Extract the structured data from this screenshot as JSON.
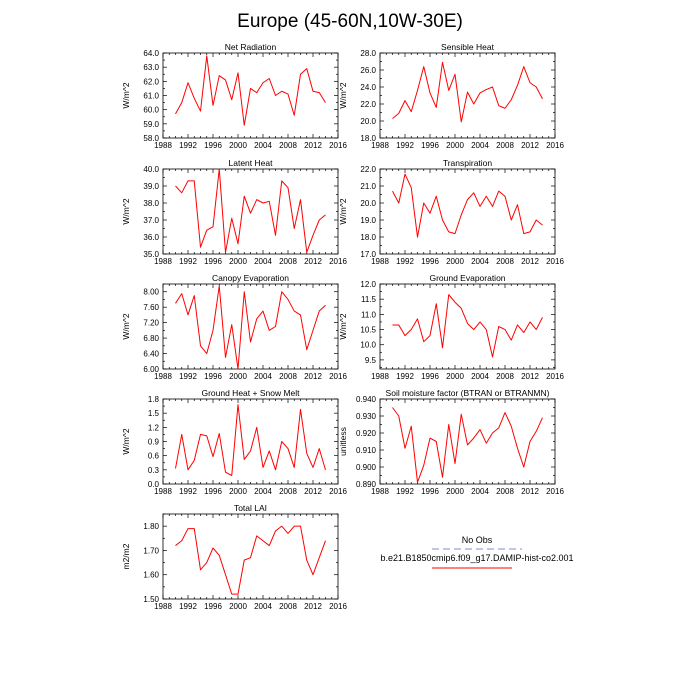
{
  "title": "Europe (45-60N,10W-30E)",
  "colors": {
    "model": "#ff0000",
    "obs": "#aab4dd"
  },
  "legend": {
    "entries": [
      {
        "label": "No Obs",
        "color": "#aab4dd",
        "dashed": true
      },
      {
        "label": "b.e21.B1850cmip6.f09_g17.DAMIP-hist-co2.001",
        "color": "#ff0000",
        "dashed": false
      }
    ]
  },
  "chart_data": [
    {
      "type": "line",
      "title": "Net Radiation",
      "ylabel": "W/m^2",
      "xlim": [
        1988,
        2016
      ],
      "ylim": [
        58.0,
        64.0
      ],
      "xticks": [
        1988,
        1992,
        1996,
        2000,
        2004,
        2008,
        2012,
        2016
      ],
      "yticks": [
        58.0,
        59.0,
        60.0,
        61.0,
        62.0,
        63.0,
        64.0
      ],
      "yformat": 1,
      "x": [
        1990,
        1991,
        1992,
        1993,
        1994,
        1995,
        1996,
        1997,
        1998,
        1999,
        2000,
        2001,
        2002,
        2003,
        2004,
        2005,
        2006,
        2007,
        2008,
        2009,
        2010,
        2011,
        2012,
        2013,
        2014
      ],
      "series": [
        {
          "name": "b.e21.B1850cmip6.f09_g17.DAMIP-hist-co2.001",
          "values": [
            59.7,
            60.5,
            61.9,
            60.8,
            59.9,
            63.8,
            60.3,
            62.4,
            62.1,
            60.7,
            62.6,
            58.9,
            61.5,
            61.2,
            61.9,
            62.2,
            61.0,
            61.3,
            61.1,
            59.6,
            62.5,
            62.9,
            61.3,
            61.2,
            60.5
          ]
        }
      ]
    },
    {
      "type": "line",
      "title": "Sensible Heat",
      "ylabel": "W/m^2",
      "xlim": [
        1988,
        2016
      ],
      "ylim": [
        18.0,
        28.0
      ],
      "xticks": [
        1988,
        1992,
        1996,
        2000,
        2004,
        2008,
        2012,
        2016
      ],
      "yticks": [
        18.0,
        20.0,
        22.0,
        24.0,
        26.0,
        28.0
      ],
      "yformat": 1,
      "x": [
        1990,
        1991,
        1992,
        1993,
        1994,
        1995,
        1996,
        1997,
        1998,
        1999,
        2000,
        2001,
        2002,
        2003,
        2004,
        2005,
        2006,
        2007,
        2008,
        2009,
        2010,
        2011,
        2012,
        2013,
        2014
      ],
      "series": [
        {
          "name": "b.e21.B1850cmip6.f09_g17.DAMIP-hist-co2.001",
          "values": [
            20.3,
            20.9,
            22.4,
            21.1,
            23.6,
            26.4,
            23.3,
            21.6,
            26.9,
            23.6,
            25.5,
            19.9,
            23.4,
            22.0,
            23.3,
            23.7,
            24.0,
            21.8,
            21.5,
            22.5,
            24.2,
            26.4,
            24.5,
            24.0,
            22.6
          ]
        }
      ]
    },
    {
      "type": "line",
      "title": "Latent Heat",
      "ylabel": "W/m^2",
      "xlim": [
        1988,
        2016
      ],
      "ylim": [
        35.0,
        40.0
      ],
      "xticks": [
        1988,
        1992,
        1996,
        2000,
        2004,
        2008,
        2012,
        2016
      ],
      "yticks": [
        35.0,
        36.0,
        37.0,
        38.0,
        39.0,
        40.0
      ],
      "yformat": 1,
      "x": [
        1990,
        1991,
        1992,
        1993,
        1994,
        1995,
        1996,
        1997,
        1998,
        1999,
        2000,
        2001,
        2002,
        2003,
        2004,
        2005,
        2006,
        2007,
        2008,
        2009,
        2010,
        2011,
        2012,
        2013,
        2014
      ],
      "series": [
        {
          "name": "b.e21.B1850cmip6.f09_g17.DAMIP-hist-co2.001",
          "values": [
            39.0,
            38.6,
            39.3,
            39.3,
            35.4,
            36.4,
            36.6,
            40.0,
            35.1,
            37.1,
            35.6,
            38.4,
            37.4,
            38.2,
            38.0,
            38.1,
            36.1,
            39.3,
            38.9,
            36.5,
            38.2,
            35.1,
            36.1,
            37.0,
            37.3
          ]
        }
      ]
    },
    {
      "type": "line",
      "title": "Transpiration",
      "ylabel": "W/m^2",
      "xlim": [
        1988,
        2016
      ],
      "ylim": [
        17.0,
        22.0
      ],
      "xticks": [
        1988,
        1992,
        1996,
        2000,
        2004,
        2008,
        2012,
        2016
      ],
      "yticks": [
        17.0,
        18.0,
        19.0,
        20.0,
        21.0,
        22.0
      ],
      "yformat": 1,
      "x": [
        1990,
        1991,
        1992,
        1993,
        1994,
        1995,
        1996,
        1997,
        1998,
        1999,
        2000,
        2001,
        2002,
        2003,
        2004,
        2005,
        2006,
        2007,
        2008,
        2009,
        2010,
        2011,
        2012,
        2013,
        2014
      ],
      "series": [
        {
          "name": "b.e21.B1850cmip6.f09_g17.DAMIP-hist-co2.001",
          "values": [
            20.7,
            20.0,
            21.7,
            20.9,
            18.0,
            20.0,
            19.4,
            20.4,
            19.0,
            18.3,
            18.2,
            19.3,
            20.2,
            20.6,
            19.8,
            20.4,
            19.8,
            20.7,
            20.4,
            19.0,
            19.9,
            18.2,
            18.3,
            19.0,
            18.7
          ]
        }
      ]
    },
    {
      "type": "line",
      "title": "Canopy Evaporation",
      "ylabel": "W/m^2",
      "xlim": [
        1988,
        2016
      ],
      "ylim": [
        6.0,
        8.2
      ],
      "xticks": [
        1988,
        1992,
        1996,
        2000,
        2004,
        2008,
        2012,
        2016
      ],
      "yticks": [
        6.0,
        6.4,
        6.8,
        7.2,
        7.6,
        8.0
      ],
      "yformat": 2,
      "x": [
        1990,
        1991,
        1992,
        1993,
        1994,
        1995,
        1996,
        1997,
        1998,
        1999,
        2000,
        2001,
        2002,
        2003,
        2004,
        2005,
        2006,
        2007,
        2008,
        2009,
        2010,
        2011,
        2012,
        2013,
        2014
      ],
      "series": [
        {
          "name": "b.e21.B1850cmip6.f09_g17.DAMIP-hist-co2.001",
          "values": [
            7.7,
            7.95,
            7.4,
            7.9,
            6.6,
            6.4,
            7.0,
            8.15,
            6.3,
            7.15,
            6.0,
            8.0,
            6.7,
            7.3,
            7.5,
            7.0,
            7.1,
            8.0,
            7.8,
            7.5,
            7.4,
            6.5,
            7.0,
            7.5,
            7.65
          ]
        }
      ]
    },
    {
      "type": "line",
      "title": "Ground Evaporation",
      "ylabel": "W/m^2",
      "xlim": [
        1988,
        2016
      ],
      "ylim": [
        9.2,
        12.0
      ],
      "xticks": [
        1988,
        1992,
        1996,
        2000,
        2004,
        2008,
        2012,
        2016
      ],
      "yticks": [
        9.5,
        10.0,
        10.5,
        11.0,
        11.5,
        12.0
      ],
      "yformat": 1,
      "x": [
        1990,
        1991,
        1992,
        1993,
        1994,
        1995,
        1996,
        1997,
        1998,
        1999,
        2000,
        2001,
        2002,
        2003,
        2004,
        2005,
        2006,
        2007,
        2008,
        2009,
        2010,
        2011,
        2012,
        2013,
        2014
      ],
      "series": [
        {
          "name": "b.e21.B1850cmip6.f09_g17.DAMIP-hist-co2.001",
          "values": [
            10.65,
            10.65,
            10.3,
            10.5,
            10.85,
            10.1,
            10.3,
            11.35,
            9.9,
            11.65,
            11.4,
            11.2,
            10.7,
            10.5,
            10.75,
            10.5,
            9.6,
            10.6,
            10.5,
            10.15,
            10.65,
            10.4,
            10.75,
            10.5,
            10.9
          ]
        }
      ]
    },
    {
      "type": "line",
      "title": "Ground Heat + Snow Melt",
      "ylabel": "W/m^2",
      "xlim": [
        1988,
        2016
      ],
      "ylim": [
        0.0,
        1.8
      ],
      "xticks": [
        1988,
        1992,
        1996,
        2000,
        2004,
        2008,
        2012,
        2016
      ],
      "yticks": [
        0.0,
        0.3,
        0.6,
        0.9,
        1.2,
        1.5,
        1.8
      ],
      "yformat": 1,
      "x": [
        1990,
        1991,
        1992,
        1993,
        1994,
        1995,
        1996,
        1997,
        1998,
        1999,
        2000,
        2001,
        2002,
        2003,
        2004,
        2005,
        2006,
        2007,
        2008,
        2009,
        2010,
        2011,
        2012,
        2013,
        2014
      ],
      "series": [
        {
          "name": "b.e21.B1850cmip6.f09_g17.DAMIP-hist-co2.001",
          "values": [
            0.33,
            1.05,
            0.3,
            0.5,
            1.05,
            1.02,
            0.58,
            1.07,
            0.25,
            0.18,
            1.68,
            0.52,
            0.7,
            1.2,
            0.35,
            0.7,
            0.3,
            0.9,
            0.75,
            0.35,
            1.58,
            0.65,
            0.35,
            0.75,
            0.3
          ]
        }
      ]
    },
    {
      "type": "line",
      "title": "Soil moisture factor (BTRAN or BTRANMN)",
      "ylabel": "unitless",
      "xlim": [
        1988,
        2016
      ],
      "ylim": [
        0.89,
        0.94
      ],
      "xticks": [
        1988,
        1992,
        1996,
        2000,
        2004,
        2008,
        2012,
        2016
      ],
      "yticks": [
        0.89,
        0.9,
        0.91,
        0.92,
        0.93,
        0.94
      ],
      "yformat": 3,
      "x": [
        1990,
        1991,
        1992,
        1993,
        1994,
        1995,
        1996,
        1997,
        1998,
        1999,
        2000,
        2001,
        2002,
        2003,
        2004,
        2005,
        2006,
        2007,
        2008,
        2009,
        2010,
        2011,
        2012,
        2013,
        2014
      ],
      "series": [
        {
          "name": "b.e21.B1850cmip6.f09_g17.DAMIP-hist-co2.001",
          "values": [
            0.935,
            0.93,
            0.911,
            0.924,
            0.891,
            0.901,
            0.917,
            0.915,
            0.894,
            0.925,
            0.902,
            0.931,
            0.913,
            0.917,
            0.922,
            0.914,
            0.92,
            0.923,
            0.932,
            0.924,
            0.911,
            0.9,
            0.915,
            0.921,
            0.929
          ]
        }
      ]
    },
    {
      "type": "line",
      "title": "Total LAI",
      "ylabel": "m2/m2",
      "xlim": [
        1988,
        2016
      ],
      "ylim": [
        1.5,
        1.85
      ],
      "xticks": [
        1988,
        1992,
        1996,
        2000,
        2004,
        2008,
        2012,
        2016
      ],
      "yticks": [
        1.5,
        1.6,
        1.7,
        1.8
      ],
      "yformat": 2,
      "x": [
        1990,
        1991,
        1992,
        1993,
        1994,
        1995,
        1996,
        1997,
        1998,
        1999,
        2000,
        2001,
        2002,
        2003,
        2004,
        2005,
        2006,
        2007,
        2008,
        2009,
        2010,
        2011,
        2012,
        2013,
        2014
      ],
      "series": [
        {
          "name": "b.e21.B1850cmip6.f09_g17.DAMIP-hist-co2.001",
          "values": [
            1.72,
            1.74,
            1.79,
            1.79,
            1.62,
            1.65,
            1.71,
            1.68,
            1.6,
            1.52,
            1.52,
            1.66,
            1.67,
            1.76,
            1.74,
            1.72,
            1.78,
            1.8,
            1.77,
            1.8,
            1.8,
            1.66,
            1.6,
            1.67,
            1.74
          ]
        }
      ]
    }
  ]
}
